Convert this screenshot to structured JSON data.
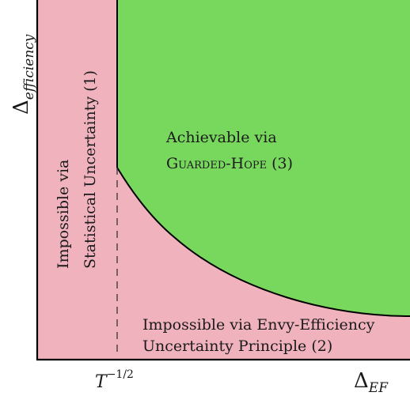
{
  "colors": {
    "impossible_region": "#f0b3be",
    "achievable_region": "#78d85e",
    "axis": "#000000",
    "curve": "#000000",
    "dashed_line": "#333333"
  },
  "axes": {
    "y_label_base": "Δ",
    "y_label_sub": "efficiency",
    "x_label_base": "Δ",
    "x_label_sub": "EF",
    "x_tick_base": "T",
    "x_tick_exponent": "−1/2"
  },
  "regions": {
    "statistical": {
      "line1": "Impossible via",
      "line2": "Statistical Uncertainty (1)"
    },
    "achievable": {
      "line1": "Achievable via",
      "line2_method": "Guarded-Hope",
      "line2_ref": "(3)"
    },
    "envy_efficiency": {
      "line1": "Impossible via Envy-Efficiency",
      "line2": "Uncertainty Principle (2)"
    }
  }
}
